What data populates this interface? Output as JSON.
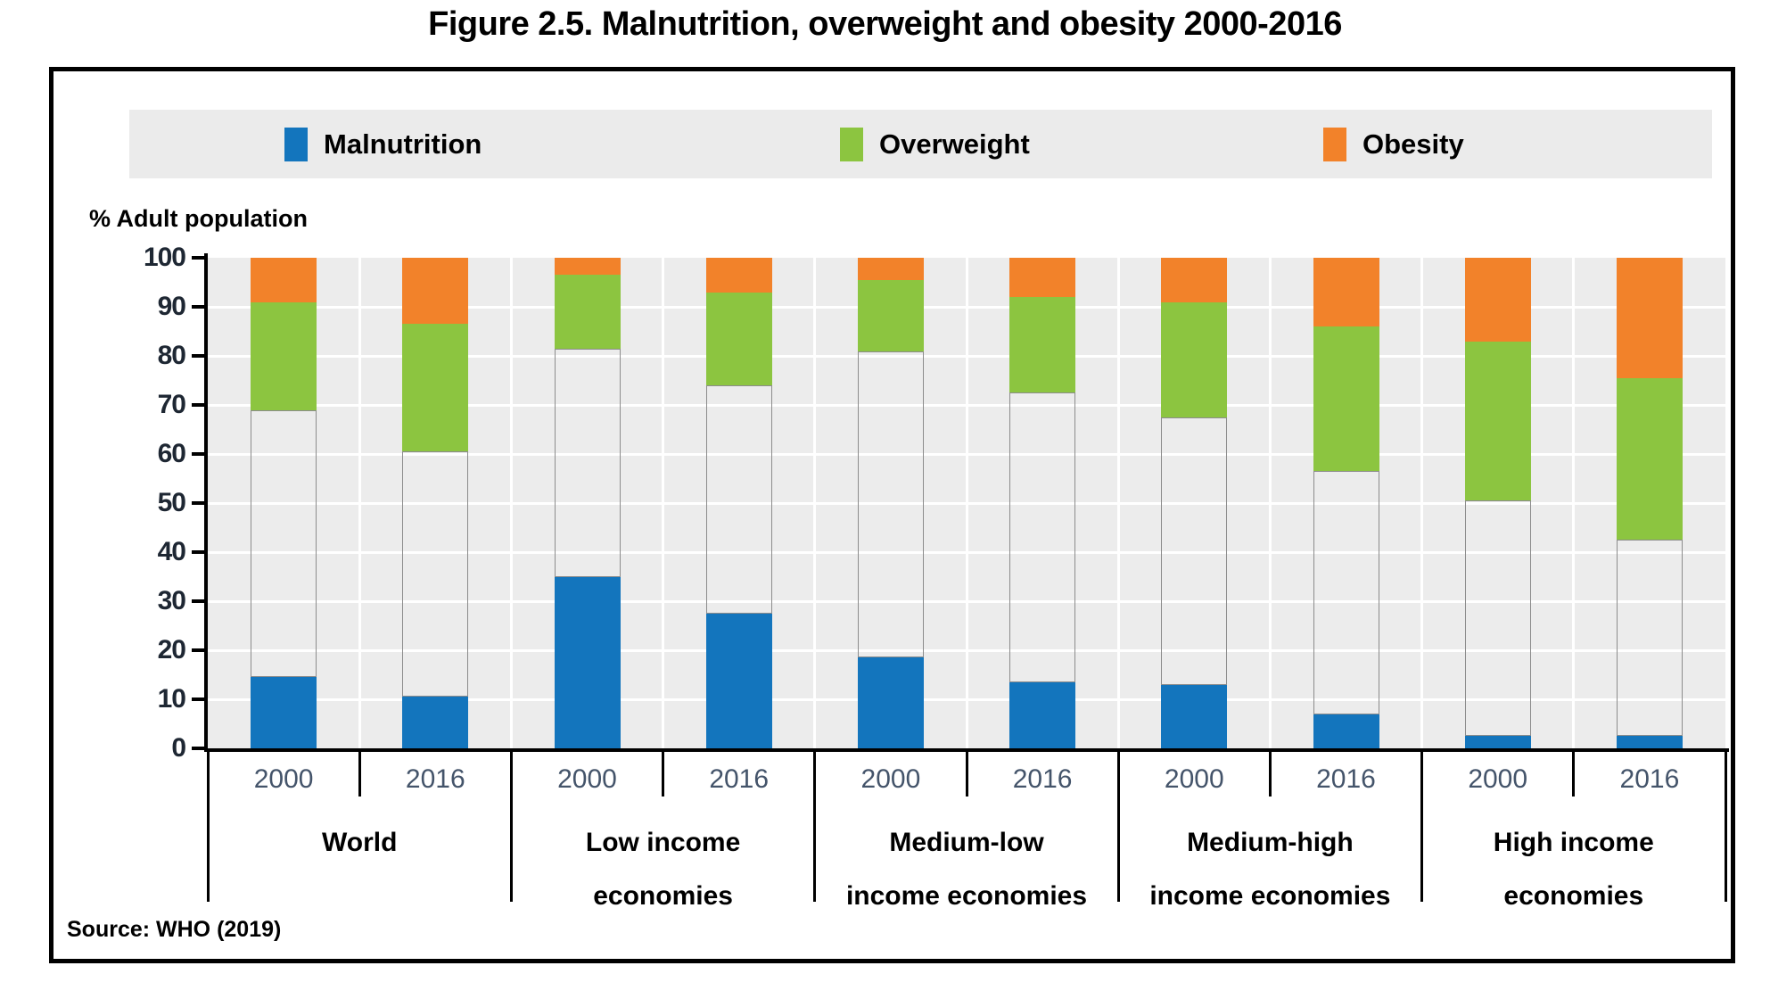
{
  "title": "Figure 2.5. Malnutrition, overweight and obesity 2000-2016",
  "source": "Source: WHO (2019)",
  "chart_data": {
    "type": "bar",
    "stacked": true,
    "title": "Figure 2.5. Malnutrition, overweight and obesity 2000-2016",
    "ylabel": "% Adult population",
    "xlabel": "",
    "ylim": [
      0,
      100
    ],
    "yticks": [
      100,
      90,
      80,
      70,
      60,
      50,
      40,
      30,
      20,
      10,
      0
    ],
    "grid": true,
    "legend_position": "top",
    "categories": [
      "World 2000",
      "World 2016",
      "Low income economies 2000",
      "Low income economies 2016",
      "Medium-low income economies 2000",
      "Medium-low income economies 2016",
      "Medium-high income economies 2000",
      "Medium-high income economies 2016",
      "High income economies 2000",
      "High income economies 2016"
    ],
    "groups": [
      {
        "label_lines": [
          "World"
        ],
        "years": [
          "2000",
          "2016"
        ]
      },
      {
        "label_lines": [
          "Low income",
          "economies"
        ],
        "years": [
          "2000",
          "2016"
        ]
      },
      {
        "label_lines": [
          "Medium-low",
          "income economies"
        ],
        "years": [
          "2000",
          "2016"
        ]
      },
      {
        "label_lines": [
          "Medium-high",
          "income economies"
        ],
        "years": [
          "2000",
          "2016"
        ]
      },
      {
        "label_lines": [
          "High income",
          "economies"
        ],
        "years": [
          "2000",
          "2016"
        ]
      }
    ],
    "series": [
      {
        "name": "Malnutrition",
        "color": "#1375BD",
        "in_legend": true,
        "values": [
          14.5,
          10.5,
          35,
          27.5,
          18.5,
          13.5,
          13,
          7,
          2.5,
          2.5
        ]
      },
      {
        "name": "Unshaded remainder",
        "color": "none",
        "border_color": "#8C8C8C",
        "in_legend": false,
        "values": [
          54.5,
          50,
          46.5,
          46.5,
          62.5,
          59,
          54.5,
          49.5,
          48,
          40
        ]
      },
      {
        "name": "Overweight",
        "color": "#8CC540",
        "in_legend": true,
        "values": [
          22,
          26,
          15,
          19,
          14.5,
          19.5,
          23.5,
          29.5,
          32.5,
          33
        ]
      },
      {
        "name": "Obesity",
        "color": "#F2822A",
        "in_legend": true,
        "values": [
          9,
          13.5,
          3.5,
          7,
          4.5,
          8,
          9,
          14,
          17,
          24.5
        ]
      }
    ],
    "colors": {
      "plot_background": "#ECECEC",
      "gridline": "#FFFFFF",
      "axis": "#000000",
      "year_label": "#44546A",
      "legend_background": "#EBEBEB"
    }
  }
}
